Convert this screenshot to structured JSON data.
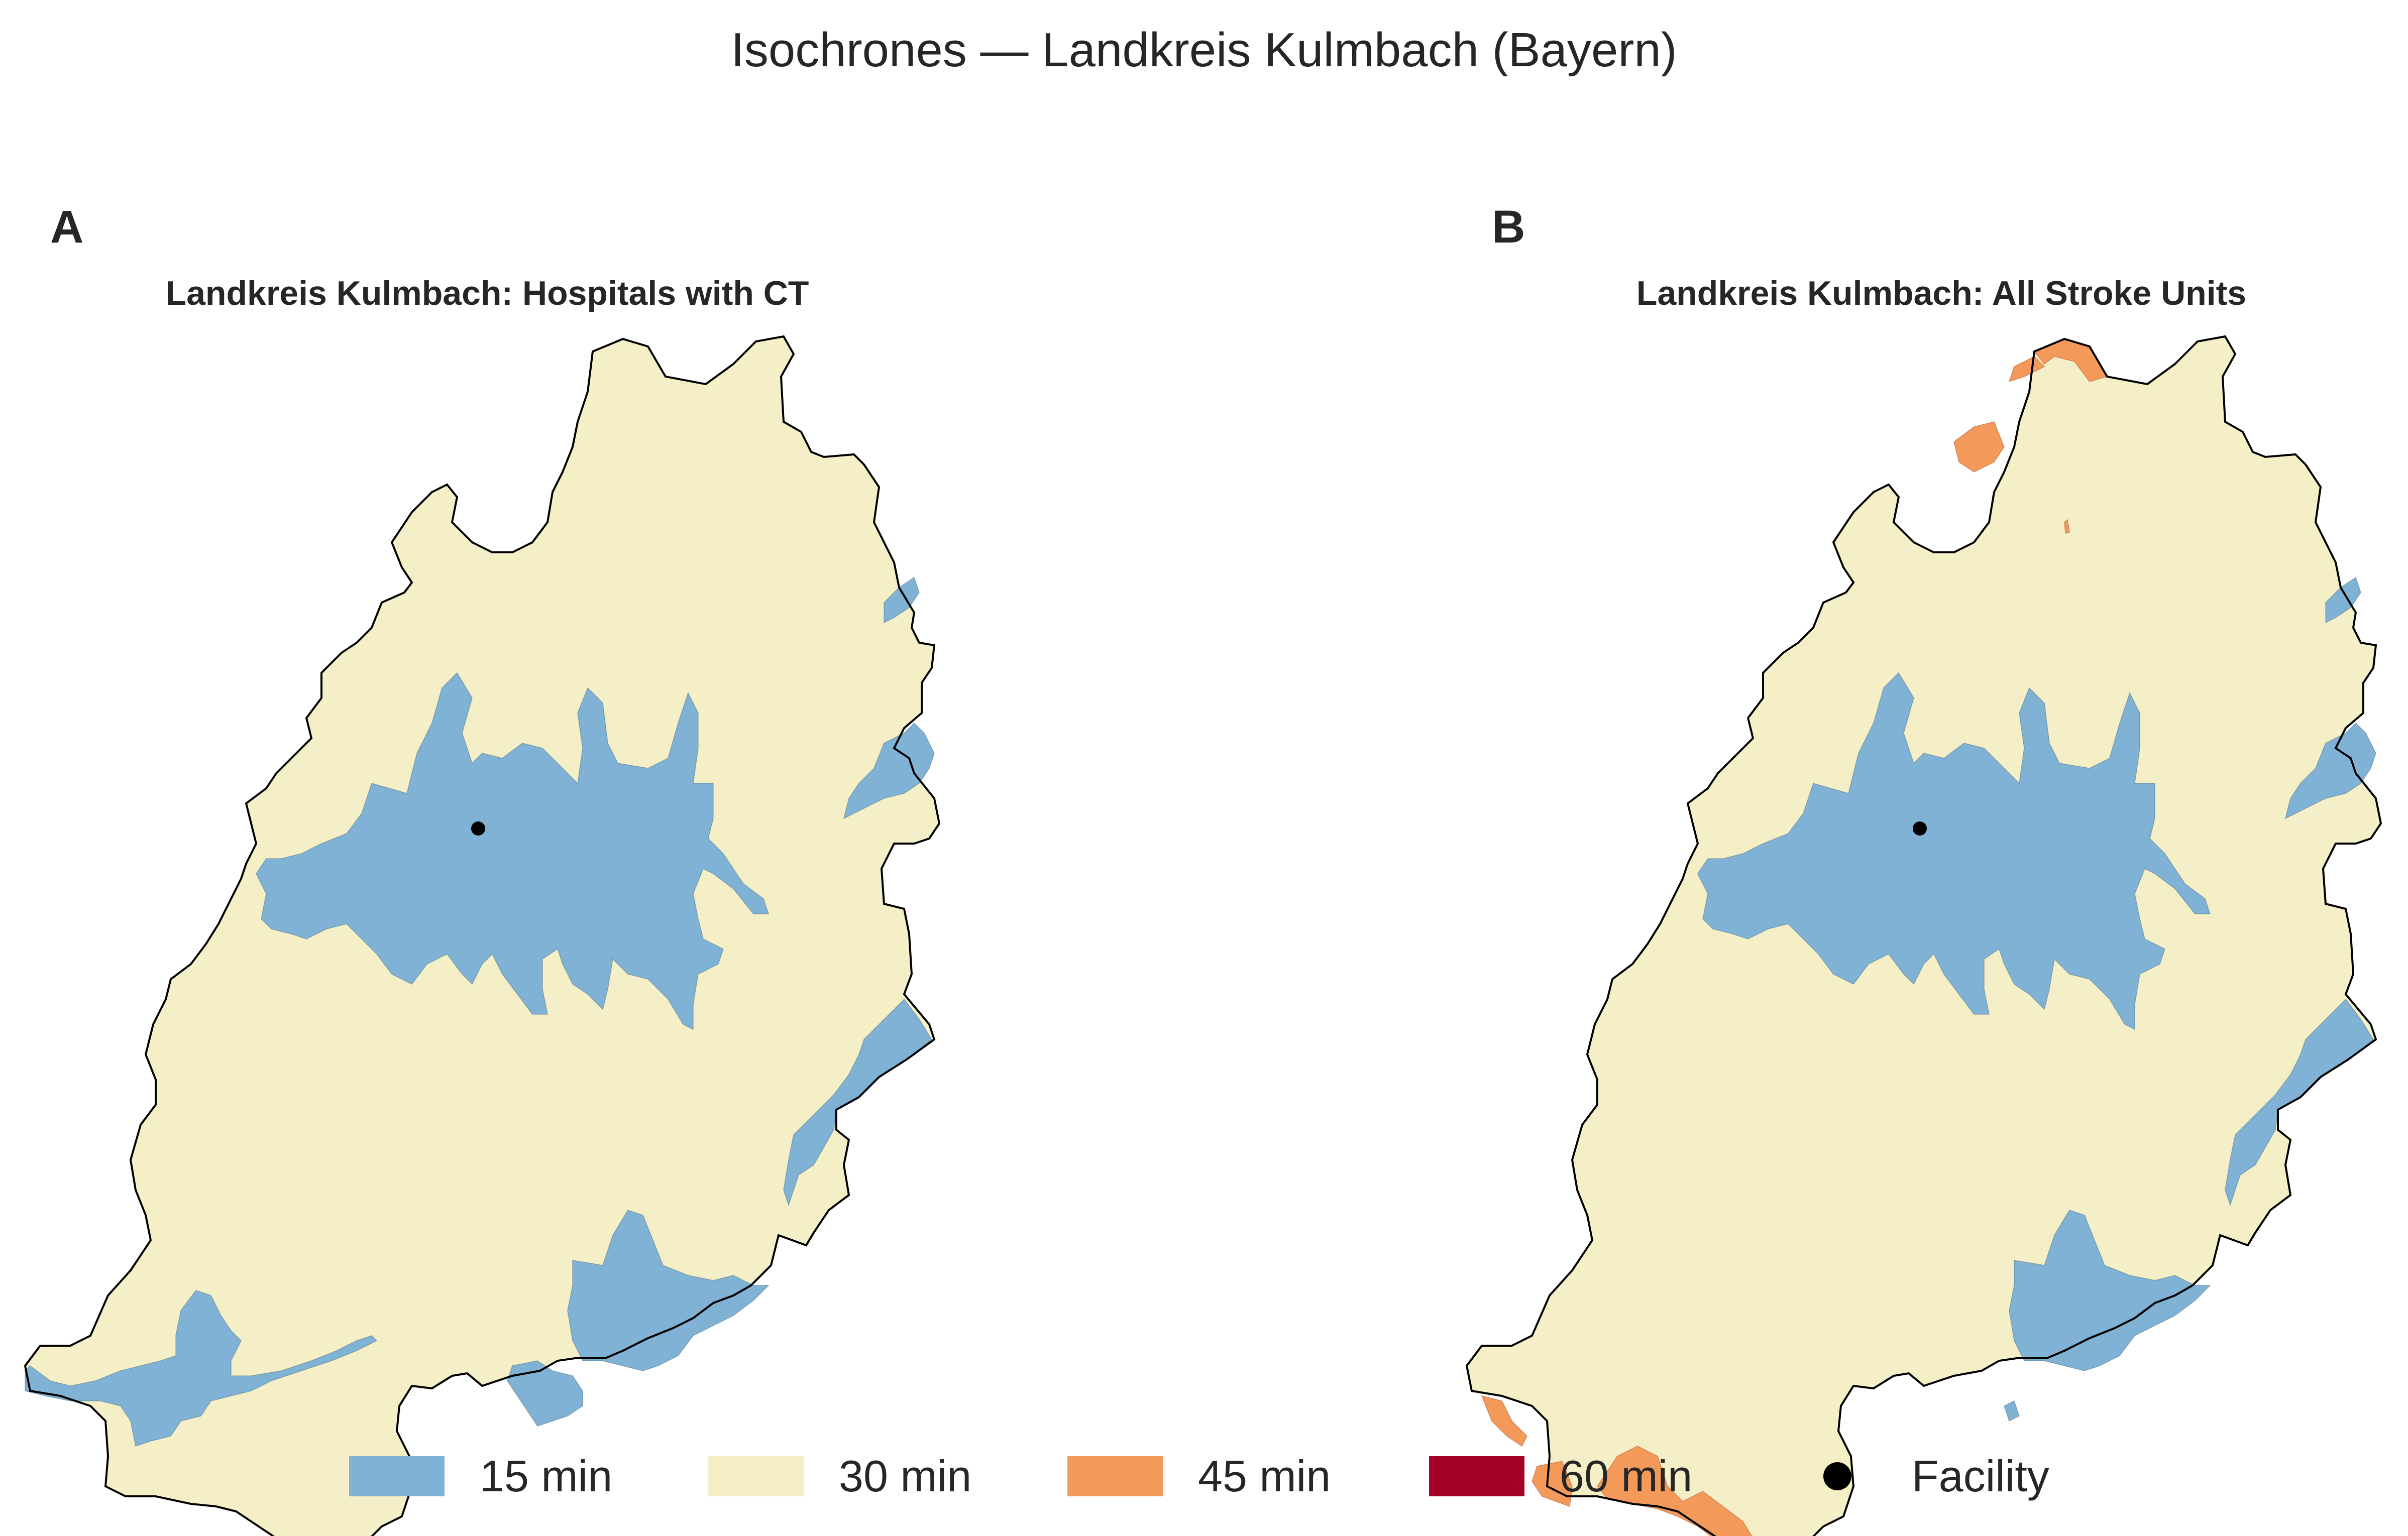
{
  "figure": {
    "title": "Isochrones — Landkreis Kulmbach (Bayern)"
  },
  "panels": [
    {
      "letter": "A",
      "title": "Landkreis Kulmbach: Hospitals with CT",
      "bands_present": [
        "15 min",
        "30 min"
      ]
    },
    {
      "letter": "B",
      "title": "Landkreis Kulmbach: All Stroke Units",
      "bands_present": [
        "15 min",
        "30 min",
        "45 min"
      ]
    }
  ],
  "legend": {
    "items": [
      {
        "label": "15 min",
        "color": "#7fb2d5",
        "kind": "swatch"
      },
      {
        "label": "30 min",
        "color": "#f4efc6",
        "kind": "swatch"
      },
      {
        "label": "45 min",
        "color": "#f39a5a",
        "kind": "swatch"
      },
      {
        "label": "60 min",
        "color": "#a50026",
        "kind": "swatch"
      },
      {
        "label": "Facility",
        "color": "#000000",
        "kind": "dot"
      }
    ]
  },
  "colors": {
    "band_15": "#7fb2d5",
    "band_30": "#f4efc6",
    "band_45": "#f39a5a",
    "band_60": "#a50026",
    "facility": "#000000",
    "boundary": "#000000"
  }
}
